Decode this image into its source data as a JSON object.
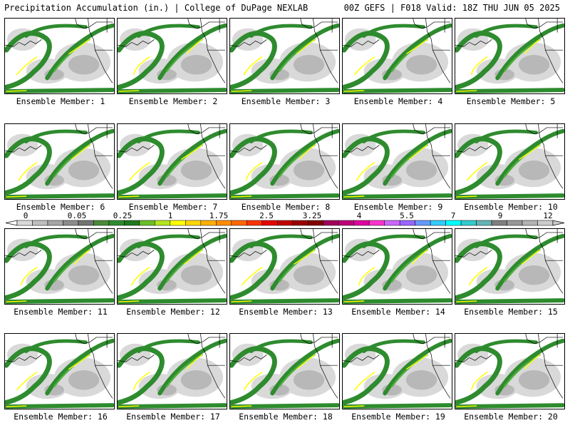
{
  "header": {
    "left": "Precipitation Accumulation (in.) | College of DuPage NEXLAB",
    "right": "00Z GEFS | F018 Valid: 18Z THU JUN 05 2025"
  },
  "members": [
    {
      "label": "Ensemble Member: 1"
    },
    {
      "label": "Ensemble Member: 2"
    },
    {
      "label": "Ensemble Member: 3"
    },
    {
      "label": "Ensemble Member: 4"
    },
    {
      "label": "Ensemble Member: 5"
    },
    {
      "label": "Ensemble Member: 6"
    },
    {
      "label": "Ensemble Member: 7"
    },
    {
      "label": "Ensemble Member: 8"
    },
    {
      "label": "Ensemble Member: 9"
    },
    {
      "label": "Ensemble Member: 10"
    },
    {
      "label": "Ensemble Member: 11"
    },
    {
      "label": "Ensemble Member: 12"
    },
    {
      "label": "Ensemble Member: 13"
    },
    {
      "label": "Ensemble Member: 14"
    },
    {
      "label": "Ensemble Member: 15"
    },
    {
      "label": "Ensemble Member: 16"
    },
    {
      "label": "Ensemble Member: 17"
    },
    {
      "label": "Ensemble Member: 18"
    },
    {
      "label": "Ensemble Member: 19"
    },
    {
      "label": "Ensemble Member: 20"
    }
  ],
  "colorbar": {
    "tick_labels": [
      "0",
      "0.05",
      "0.25",
      "1",
      "1.75",
      "2.5",
      "3.25",
      "4",
      "5.5",
      "7",
      "9",
      "12"
    ],
    "colors": [
      "#d9d9d9",
      "#bfbfbf",
      "#a6a6a6",
      "#8c8c8c",
      "#737373",
      "#4a8a3a",
      "#2e8b2e",
      "#1f7a1f",
      "#6abf2a",
      "#b5e61d",
      "#ffff00",
      "#ffd700",
      "#ffb000",
      "#ff8c00",
      "#ff6600",
      "#ff3300",
      "#e60000",
      "#c00000",
      "#990000",
      "#800000",
      "#a0005a",
      "#c0007a",
      "#e000a0",
      "#ff33cc",
      "#cc66ff",
      "#9966ff",
      "#6699ff",
      "#33ccff",
      "#00ffff",
      "#33cccc",
      "#66b3b3",
      "#808080",
      "#999999",
      "#b3b3b3",
      "#cccccc"
    ]
  },
  "map_colors": {
    "ocean": "#ffffff",
    "light_gray": "#d9d9d9",
    "mid_gray": "#b8b8b8",
    "dark_green": "#2e8b2e",
    "green": "#4caf3a",
    "yellow": "#ffff00",
    "red": "#e60000"
  }
}
